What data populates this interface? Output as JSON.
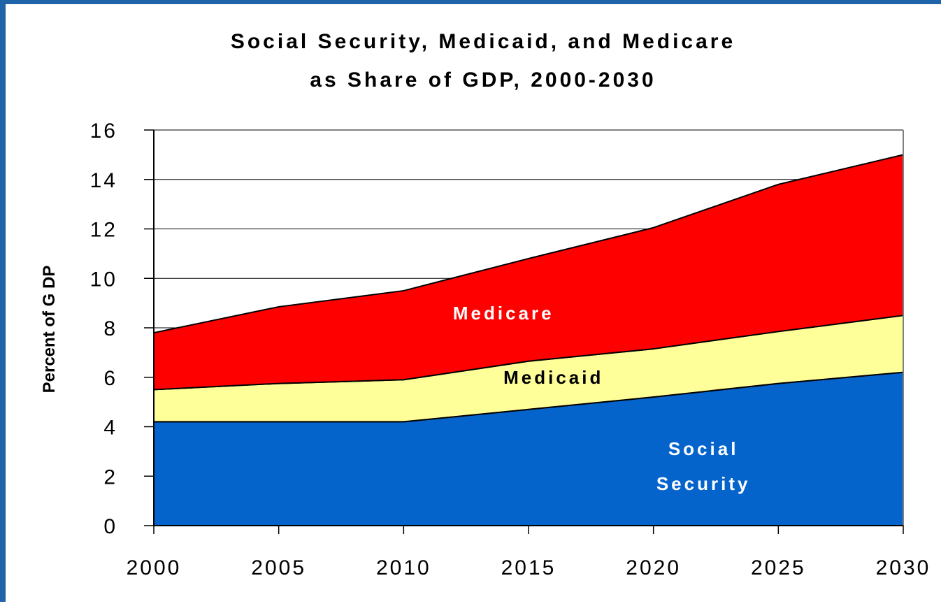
{
  "chart_data": {
    "type": "area",
    "stacked": true,
    "title": [
      "Social Security, Medicaid, and Medicare",
      "as Share of GDP, 2000-2030"
    ],
    "xlabel": "",
    "ylabel": "Percent of G DP",
    "x": [
      2000,
      2005,
      2010,
      2015,
      2020,
      2025,
      2030
    ],
    "x_tick_labels": [
      "2000",
      "2005",
      "2010",
      "2015",
      "2020",
      "2025",
      "2030"
    ],
    "ylim": [
      0,
      16
    ],
    "y_ticks": [
      0,
      2,
      4,
      6,
      8,
      10,
      12,
      14,
      16
    ],
    "y_tick_labels": [
      "0",
      "2",
      "4",
      "6",
      "8",
      "10",
      "12",
      "14",
      "16"
    ],
    "grid": "horizontal",
    "series": [
      {
        "name": "Social Security",
        "label_lines": [
          "Social",
          "Security"
        ],
        "label_color": "#ffffff",
        "color": "#0563cc",
        "values": [
          4.2,
          4.2,
          4.2,
          4.7,
          5.2,
          5.75,
          6.2
        ],
        "label_pos": [
          2022,
          2.4
        ]
      },
      {
        "name": "Medicaid",
        "label_lines": [
          "Medicaid"
        ],
        "label_color": "#000000",
        "color": "#ffff99",
        "values": [
          1.3,
          1.55,
          1.7,
          1.95,
          1.95,
          2.1,
          2.3
        ],
        "label_pos": [
          2016,
          6.0
        ]
      },
      {
        "name": "Medicare",
        "label_lines": [
          "Medicare"
        ],
        "label_color": "#ffffff",
        "color": "#ff0000",
        "values": [
          2.3,
          3.1,
          3.6,
          4.15,
          4.9,
          5.95,
          6.5
        ],
        "label_pos": [
          2014,
          8.6
        ]
      }
    ]
  }
}
